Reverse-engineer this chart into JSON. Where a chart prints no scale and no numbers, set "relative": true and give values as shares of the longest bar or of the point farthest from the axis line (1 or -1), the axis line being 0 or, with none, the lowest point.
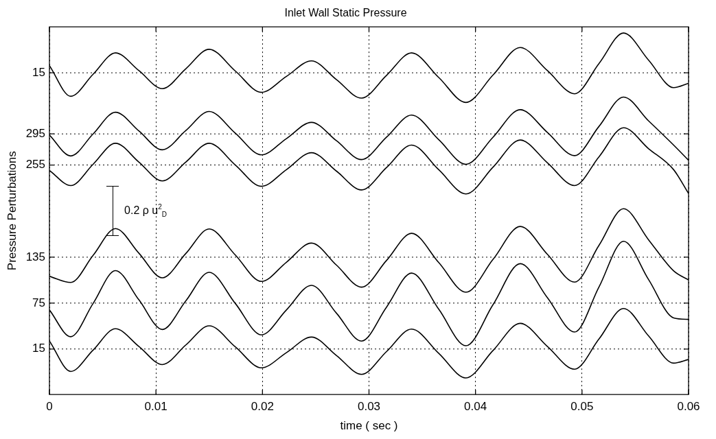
{
  "chart_data": {
    "type": "line",
    "title": "Inlet Wall Static Pressure",
    "xlabel": "time ( sec )",
    "ylabel": "Pressure Perturbations",
    "relative": true,
    "x": [
      0,
      0.002,
      0.0041,
      0.0062,
      0.0084,
      0.0106,
      0.0128,
      0.015,
      0.01745,
      0.0199,
      0.02225,
      0.0246,
      0.02695,
      0.0293,
      0.03165,
      0.034,
      0.03655,
      0.0391,
      0.04165,
      0.0442,
      0.04675,
      0.0493,
      0.0516,
      0.0539,
      0.05625,
      0.0586,
      0.06
    ],
    "series": [
      {
        "name": "15",
        "color": "#000000",
        "values": [
          0.91,
          0.825,
          0.886,
          0.945,
          0.896,
          0.846,
          0.901,
          0.955,
          0.895,
          0.836,
          0.88,
          0.923,
          0.871,
          0.82,
          0.883,
          0.945,
          0.877,
          0.808,
          0.884,
          0.96,
          0.896,
          0.832,
          0.916,
          1,
          0.925,
          0.849,
          0.861
        ]
      },
      {
        "name": "295",
        "color": "#000000",
        "values": [
          0.718,
          0.66,
          0.721,
          0.781,
          0.729,
          0.677,
          0.73,
          0.783,
          0.723,
          0.663,
          0.708,
          0.753,
          0.702,
          0.65,
          0.712,
          0.773,
          0.705,
          0.637,
          0.712,
          0.788,
          0.725,
          0.661,
          0.742,
          0.823,
          0.757,
          0.69,
          0.648
        ]
      },
      {
        "name": "255",
        "color": "#000000",
        "values": [
          0.62,
          0.578,
          0.637,
          0.695,
          0.643,
          0.591,
          0.643,
          0.695,
          0.635,
          0.576,
          0.622,
          0.669,
          0.618,
          0.566,
          0.628,
          0.69,
          0.622,
          0.555,
          0.629,
          0.704,
          0.641,
          0.578,
          0.658,
          0.738,
          0.68,
          0.622,
          0.556
        ]
      },
      {
        "name": "135",
        "color": "#000000",
        "values": [
          0.327,
          0.31,
          0.385,
          0.459,
          0.391,
          0.323,
          0.39,
          0.458,
          0.386,
          0.313,
          0.366,
          0.419,
          0.358,
          0.297,
          0.371,
          0.446,
          0.365,
          0.283,
          0.374,
          0.465,
          0.388,
          0.311,
          0.413,
          0.514,
          0.428,
          0.342,
          0.317
        ]
      },
      {
        "name": "75",
        "color": "#000000",
        "values": [
          0.234,
          0.16,
          0.252,
          0.343,
          0.262,
          0.18,
          0.259,
          0.338,
          0.252,
          0.165,
          0.234,
          0.302,
          0.225,
          0.148,
          0.242,
          0.336,
          0.236,
          0.135,
          0.249,
          0.362,
          0.268,
          0.173,
          0.298,
          0.424,
          0.318,
          0.212,
          0.208
        ]
      },
      {
        "name": "15",
        "color": "#000000",
        "values": [
          0.148,
          0.064,
          0.123,
          0.182,
          0.133,
          0.083,
          0.137,
          0.19,
          0.132,
          0.074,
          0.116,
          0.159,
          0.108,
          0.056,
          0.119,
          0.181,
          0.114,
          0.046,
          0.122,
          0.197,
          0.133,
          0.07,
          0.154,
          0.238,
          0.162,
          0.087,
          0.097
        ]
      }
    ],
    "xlim": [
      0,
      0.06
    ],
    "xticks": [
      0,
      0.01,
      0.02,
      0.03,
      0.04,
      0.05,
      0.06
    ],
    "ref_lines": [
      {
        "axis": "y",
        "value": 0.89,
        "line_style": "dotted"
      },
      {
        "axis": "y",
        "value": 0.721,
        "line_style": "dotted"
      },
      {
        "axis": "y",
        "value": 0.635,
        "line_style": "dotted"
      },
      {
        "axis": "y",
        "value": 0.38,
        "line_style": "dotted"
      },
      {
        "axis": "y",
        "value": 0.253,
        "line_style": "dotted"
      },
      {
        "axis": "y",
        "value": 0.126,
        "line_style": "dotted"
      }
    ],
    "grid": "x",
    "legend": "left",
    "line_style": "solid",
    "annotations": [
      "0.2 ρ u$^{2}$$_{D}$"
    ]
  }
}
